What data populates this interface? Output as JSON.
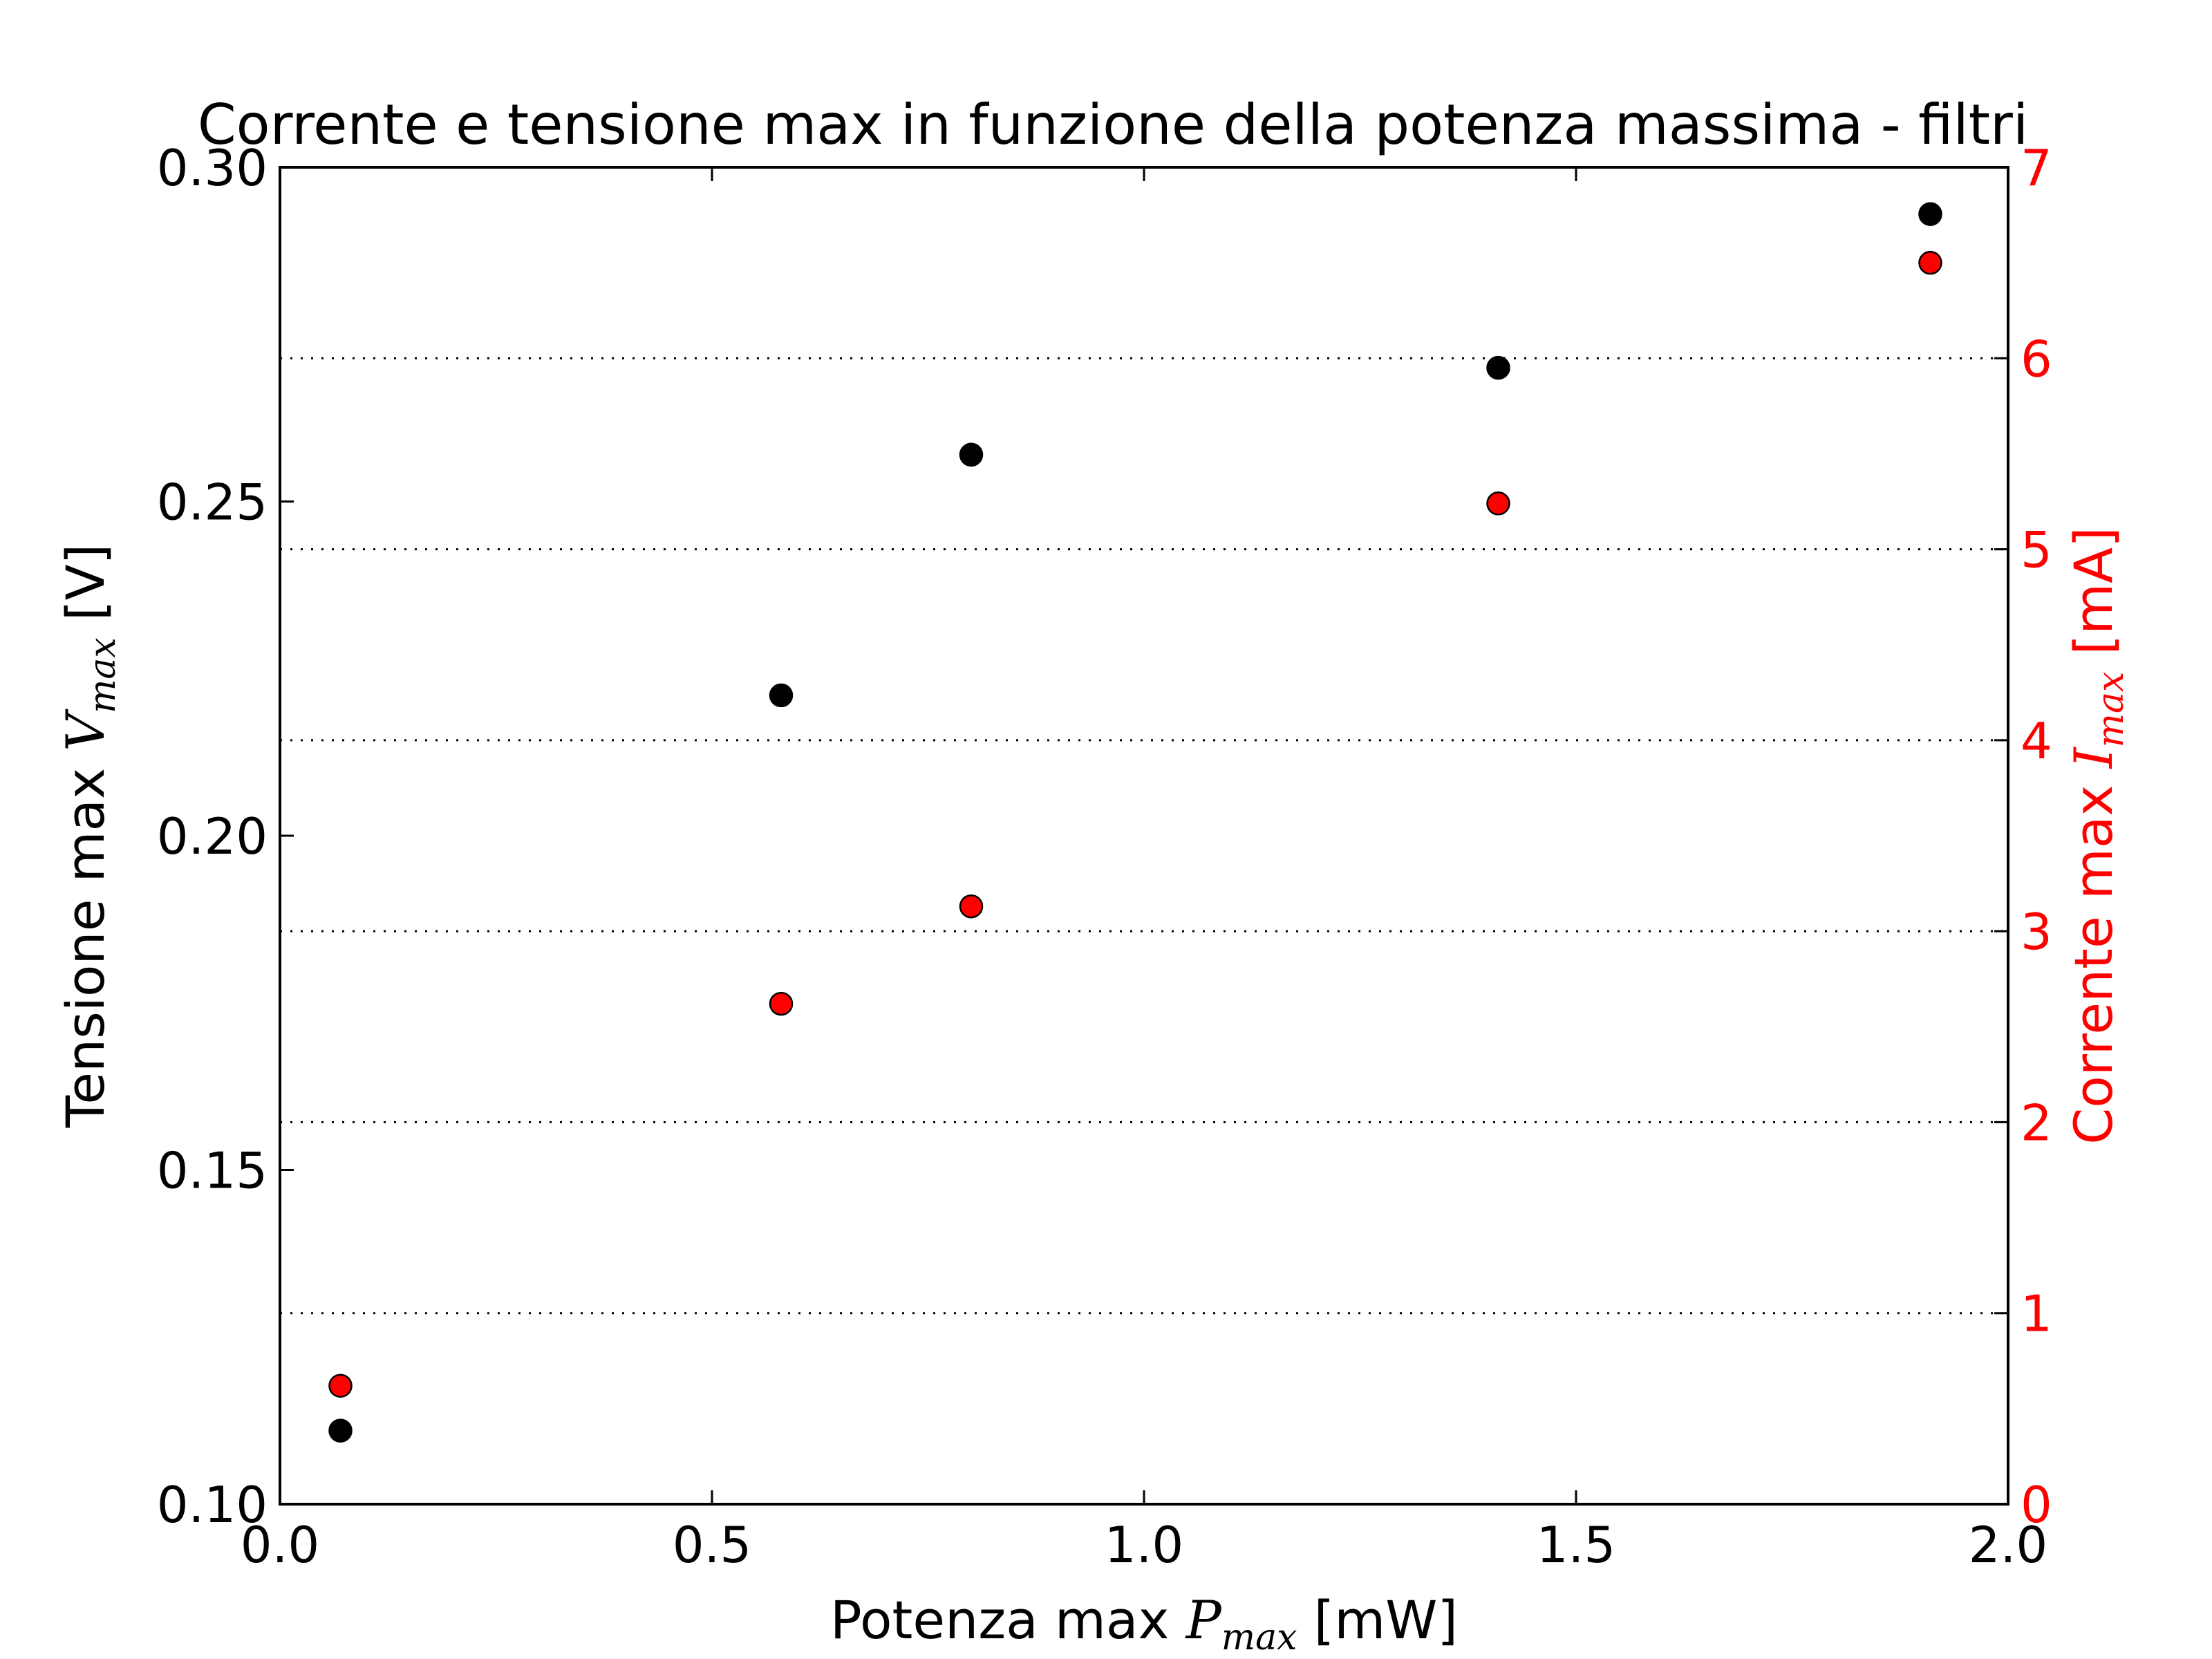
{
  "chart_data": {
    "type": "scatter",
    "title": "Corrente e tensione max in funzione della potenza massima - filtri",
    "xlabel": {
      "text": "Potenza max ",
      "symbol": "P",
      "subscript": "max",
      "unit": " [mW]"
    },
    "ylabel_left": {
      "text": "Tensione max ",
      "symbol": "V",
      "subscript": "max",
      "unit": " [V]"
    },
    "ylabel_right": {
      "text": "Corrente max ",
      "symbol": "I",
      "subscript": "max",
      "unit": " [mA]"
    },
    "xlim": [
      0.0,
      2.0
    ],
    "ylim_left": [
      0.1,
      0.3
    ],
    "ylim_right": [
      0,
      7
    ],
    "x_ticks": [
      "0.0",
      "0.5",
      "1.0",
      "1.5",
      "2.0"
    ],
    "y_left_ticks": [
      "0.10",
      "0.15",
      "0.20",
      "0.25",
      "0.30"
    ],
    "y_right_ticks": [
      "0",
      "1",
      "2",
      "3",
      "4",
      "5",
      "6",
      "7"
    ],
    "grid": "horizontal-dotted-right-axis",
    "series": [
      {
        "axis": "left",
        "color": "#000000",
        "x": [
          0.07,
          0.58,
          0.8,
          1.41,
          1.91
        ],
        "y": [
          0.111,
          0.221,
          0.257,
          0.27,
          0.293
        ]
      },
      {
        "axis": "right",
        "color": "#ff0000",
        "x": [
          0.07,
          0.58,
          0.8,
          1.41,
          1.91
        ],
        "y": [
          0.62,
          2.62,
          3.13,
          5.24,
          6.5
        ]
      }
    ]
  }
}
